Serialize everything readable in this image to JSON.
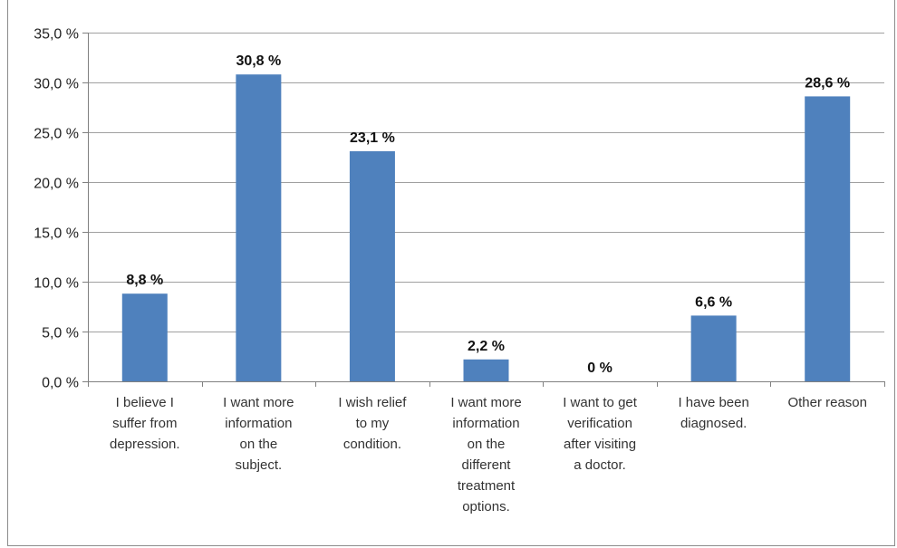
{
  "chart_data": {
    "type": "bar",
    "categories": [
      "I believe I suffer from depression.",
      "I want more information on the subject.",
      "I wish relief to my condition.",
      "I want more information on the different treatment options.",
      "I want to get verification after visiting a doctor.",
      "I have been diagnosed.",
      "Other reason"
    ],
    "category_lines": [
      [
        "I believe I",
        "suffer from",
        "depression."
      ],
      [
        "I want more",
        "information",
        "on the",
        "subject."
      ],
      [
        "I wish relief",
        "to my",
        "condition."
      ],
      [
        "I want more",
        "information",
        "on the",
        "different",
        "treatment",
        "options."
      ],
      [
        "I want to get",
        "verification",
        "after visiting",
        "a doctor."
      ],
      [
        "I have been",
        "diagnosed."
      ],
      [
        "Other reason"
      ]
    ],
    "values": [
      8.8,
      30.8,
      23.1,
      2.2,
      0,
      6.6,
      28.6
    ],
    "data_labels": [
      "8,8 %",
      "30,8 %",
      "23,1 %",
      "2,2 %",
      "0 %",
      "6,6 %",
      "28,6 %"
    ],
    "yticks": [
      0,
      5,
      10,
      15,
      20,
      25,
      30,
      35
    ],
    "ytick_labels": [
      "0,0 %",
      "5,0 %",
      "10,0 %",
      "15,0 %",
      "20,0 %",
      "25,0 %",
      "30,0 %",
      "35,0 %"
    ],
    "ylim": [
      0,
      35
    ],
    "grid": true,
    "bar_color": "#4f81bd",
    "grid_color": "#a0a0a0"
  }
}
